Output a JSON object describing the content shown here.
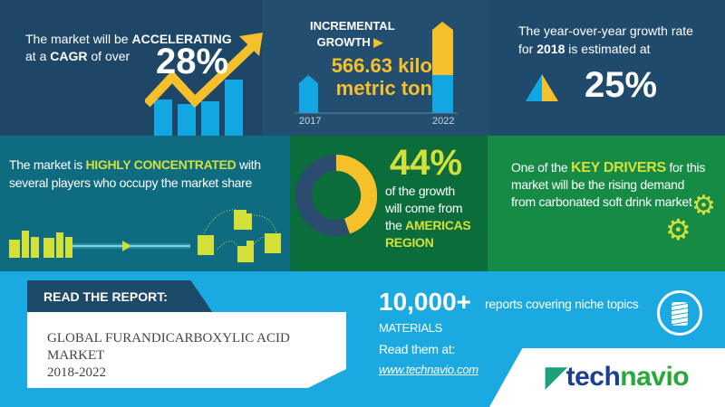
{
  "cagr": {
    "pre": "The market will be ",
    "bold1": "ACCELERATING",
    "mid": "at a ",
    "bold2": "CAGR",
    "post": " of over",
    "value": "28%"
  },
  "incremental": {
    "label1": "INCREMENTAL",
    "label2": "GROWTH",
    "value1": "566.63 kilo",
    "value2": "metric ton",
    "year_start": "2017",
    "year_end": "2022"
  },
  "yoy": {
    "pre": "The year-over-year growth rate",
    "for": "for ",
    "year": "2018",
    "post": " is estimated at",
    "value": "25%"
  },
  "concentration": {
    "pre": "The market is ",
    "bold": "HIGHLY CONCENTRATED",
    "rest": "with several players who occupy the market share"
  },
  "region": {
    "value": "44%",
    "line1": "of the growth",
    "line2": "will come from",
    "line3": "the ",
    "bold1": "AMERICAS",
    "bold2": "REGION",
    "share": 0.44
  },
  "drivers": {
    "pre": "One of the ",
    "bold": "KEY DRIVERS",
    "post": " for",
    "rest": "this market will be the rising demand from carbonated soft drink market"
  },
  "report": {
    "tab": "READ THE REPORT:",
    "title1": "GLOBAL FURANDICARBOXYLIC ACID MARKET",
    "title2": "2018-2022"
  },
  "promo": {
    "count": "10,000+",
    "count_desc": "reports covering niche topics",
    "materials": "MATERIALS",
    "read": "Read them at:",
    "link": "www.technavio.com"
  },
  "logo": {
    "text_a": "tech",
    "text_b": "navio"
  },
  "colors": {
    "navy": "#1f4768",
    "blue": "#12a7e3",
    "yellow": "#f6c02b",
    "teal": "#0f6b80",
    "green_dark": "#0b6d3b",
    "green": "#168b46",
    "lime": "#d4e03a",
    "sky": "#1aa9e1"
  }
}
